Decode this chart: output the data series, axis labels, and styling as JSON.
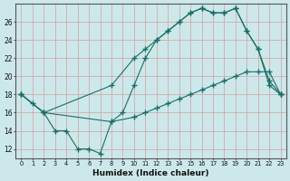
{
  "bg_color": "#cce8ea",
  "grid_color": "#c8dfe0",
  "line_color": "#1a6e65",
  "xlabel": "Humidex (Indice chaleur)",
  "xlim": [
    -0.5,
    23.5
  ],
  "ylim": [
    11.0,
    28.0
  ],
  "xticks": [
    0,
    1,
    2,
    3,
    4,
    5,
    6,
    7,
    8,
    9,
    10,
    11,
    12,
    13,
    14,
    15,
    16,
    17,
    18,
    19,
    20,
    21,
    22,
    23
  ],
  "yticks": [
    12,
    14,
    16,
    18,
    20,
    22,
    24,
    26
  ],
  "series": [
    {
      "x": [
        0,
        2,
        8,
        10,
        11,
        12,
        13,
        14,
        15,
        16,
        17,
        18,
        19,
        20,
        21,
        22,
        23
      ],
      "y": [
        18,
        16,
        19,
        22,
        23,
        24,
        25,
        26,
        27,
        27.5,
        27,
        27,
        27.5,
        25,
        23,
        19.5,
        18
      ]
    },
    {
      "x": [
        0,
        2,
        8,
        10,
        11,
        12,
        13,
        14,
        15,
        16,
        17,
        18,
        19,
        20,
        21,
        22,
        23
      ],
      "y": [
        18,
        16,
        15,
        15.5,
        16,
        16.5,
        17,
        17.5,
        18,
        18.5,
        19,
        19.5,
        20,
        20.5,
        20.5,
        20.5,
        18
      ]
    },
    {
      "x": [
        0,
        1,
        2,
        3,
        4,
        5,
        6,
        7,
        8,
        9,
        10,
        11,
        12,
        13,
        14,
        15,
        16,
        17,
        18,
        19,
        20,
        21,
        22,
        23
      ],
      "y": [
        18,
        17,
        16,
        14,
        14,
        12,
        12,
        11.5,
        15,
        16,
        19,
        22,
        24,
        25,
        26,
        27,
        27.5,
        27,
        27,
        27.5,
        25,
        23,
        19,
        18
      ]
    }
  ]
}
